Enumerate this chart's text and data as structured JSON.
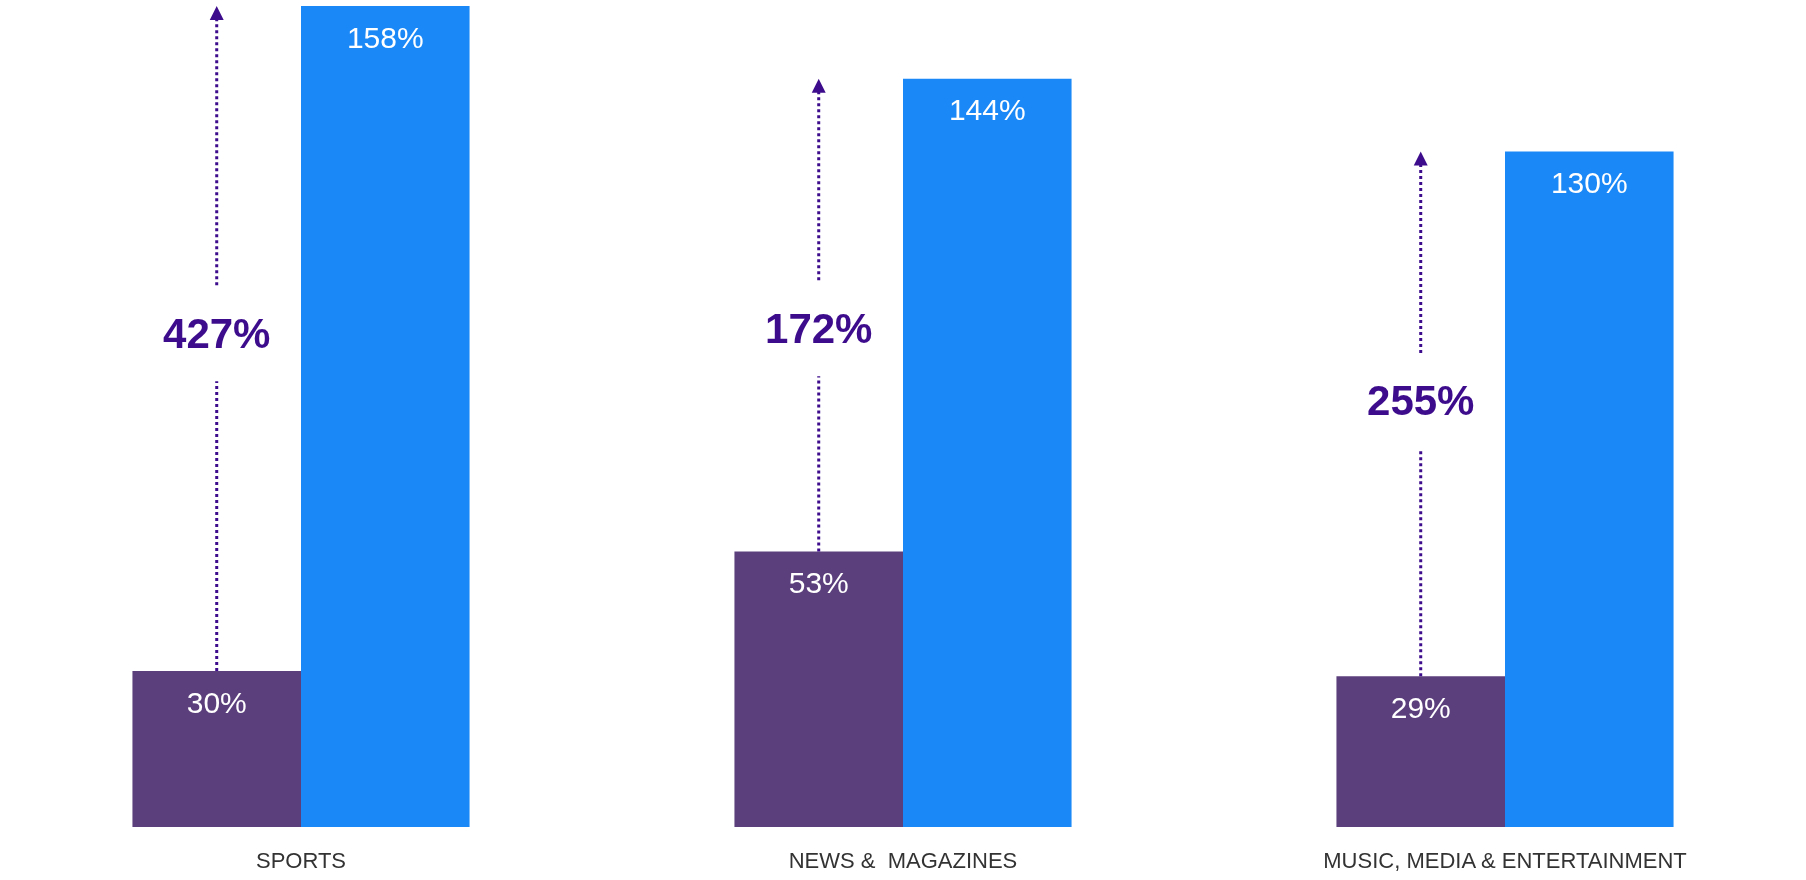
{
  "chart_data": {
    "type": "bar",
    "categories": [
      "SPORTS",
      "NEWS &  MAGAZINES",
      "MUSIC, MEDIA & ENTERTAINMENT"
    ],
    "series": [
      {
        "color": "#5b3f7c",
        "values": [
          30,
          53,
          29
        ],
        "value_labels": [
          "30%",
          "53%",
          "29%"
        ]
      },
      {
        "color": "#1a88f7",
        "values": [
          158,
          144,
          130
        ],
        "value_labels": [
          "158%",
          "144%",
          "130%"
        ]
      }
    ],
    "tick_labels": "x",
    "annotations": [
      {
        "text": "427%",
        "x": "SPORTS",
        "y": 95
      },
      {
        "text": "172%",
        "x": "NEWS &  MAGAZINES",
        "y": 96
      },
      {
        "text": "255%",
        "x": "MUSIC, MEDIA & ENTERTAINMENT",
        "y": 82
      }
    ]
  }
}
